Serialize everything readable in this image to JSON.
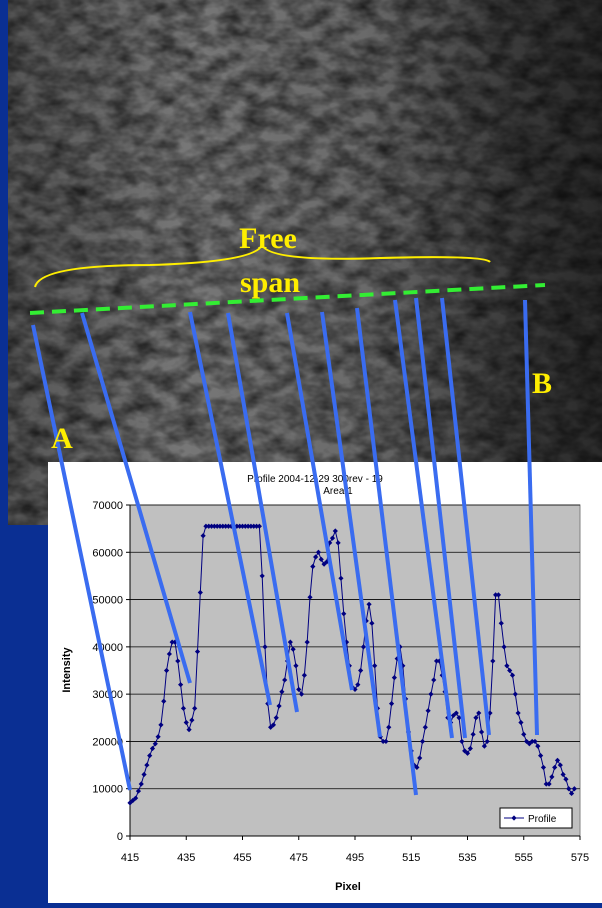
{
  "chart_data": {
    "type": "line",
    "title": "Profile 2004-12-29 300rev - 19",
    "subtitle": "Area 1",
    "x_label": "Pixel",
    "y_label": "Intensity",
    "annotations": [
      "Free",
      "span",
      "A",
      "B"
    ],
    "x": [
      415,
      416,
      417,
      418,
      419,
      420,
      421,
      422,
      423,
      424,
      425,
      426,
      427,
      428,
      429,
      430,
      431,
      432,
      433,
      434,
      435,
      436,
      437,
      438,
      439,
      440,
      441,
      442,
      443,
      444,
      445,
      446,
      447,
      448,
      449,
      450,
      451,
      452,
      453,
      454,
      455,
      456,
      457,
      458,
      459,
      460,
      461,
      462,
      463,
      464,
      465,
      466,
      467,
      468,
      469,
      470,
      471,
      472,
      473,
      474,
      475,
      476,
      477,
      478,
      479,
      480,
      481,
      482,
      483,
      484,
      485,
      486,
      487,
      488,
      489,
      490,
      491,
      492,
      493,
      494,
      495,
      496,
      497,
      498,
      499,
      500,
      501,
      502,
      503,
      504,
      505,
      506,
      507,
      508,
      509,
      510,
      511,
      512,
      513,
      514,
      515,
      516,
      517,
      518,
      519,
      520,
      521,
      522,
      523,
      524,
      525,
      526,
      527,
      528,
      529,
      530,
      531,
      532,
      533,
      534,
      535,
      536,
      537,
      538,
      539,
      540,
      541,
      542,
      543,
      544,
      545,
      546,
      547,
      548,
      549,
      550,
      551,
      552,
      553,
      554,
      555,
      556,
      557,
      558,
      559,
      560,
      561,
      562,
      563,
      564,
      565,
      566,
      567,
      568,
      569,
      570,
      571,
      572,
      573
    ],
    "series": [
      {
        "name": "Profile",
        "color": "#000080",
        "values": [
          7000,
          7500,
          8000,
          9500,
          11000,
          13000,
          15000,
          17000,
          18500,
          19500,
          21000,
          23500,
          28500,
          35000,
          38500,
          41000,
          41000,
          37000,
          32000,
          27000,
          24000,
          22500,
          24500,
          27000,
          39000,
          51500,
          63500,
          65500,
          65500,
          65500,
          65500,
          65500,
          65500,
          65500,
          65500,
          65500,
          65500,
          65500,
          65500,
          65500,
          65500,
          65500,
          65500,
          65500,
          65500,
          65500,
          65500,
          55000,
          40000,
          28000,
          23000,
          23500,
          25000,
          27500,
          30500,
          33000,
          37000,
          41000,
          39500,
          36000,
          31000,
          30000,
          34000,
          41000,
          50500,
          57000,
          59000,
          60000,
          58500,
          57500,
          58000,
          62000,
          63000,
          64500,
          62000,
          54500,
          47000,
          41000,
          36000,
          31500,
          31000,
          32000,
          35000,
          40000,
          45500,
          49000,
          45000,
          36000,
          27000,
          21000,
          20000,
          20000,
          23000,
          28000,
          33500,
          37500,
          40000,
          36000,
          29000,
          22000,
          18000,
          15000,
          14500,
          16500,
          20000,
          23000,
          26500,
          30000,
          33000,
          37000,
          37000,
          34000,
          30500,
          25000,
          24000,
          25500,
          26000,
          25000,
          20000,
          18000,
          17500,
          18500,
          21500,
          25000,
          26000,
          22000,
          19000,
          20000,
          26000,
          37000,
          51000,
          51000,
          45000,
          40000,
          36000,
          35000,
          34000,
          30000,
          26000,
          24000,
          21500,
          20000,
          19500,
          20000,
          20000,
          19000,
          17000,
          14500,
          11000,
          11000,
          12500,
          14500,
          16000,
          15000,
          13000,
          12000,
          10000,
          9000,
          10000
        ]
      }
    ],
    "xlim": [
      415,
      575
    ],
    "xticks": [
      415,
      435,
      455,
      475,
      495,
      515,
      535,
      555,
      575
    ],
    "ylim": [
      0,
      70000
    ],
    "yticks": [
      0,
      10000,
      20000,
      30000,
      40000,
      50000,
      60000,
      70000
    ],
    "grid": true,
    "legend": "bottom-right"
  }
}
